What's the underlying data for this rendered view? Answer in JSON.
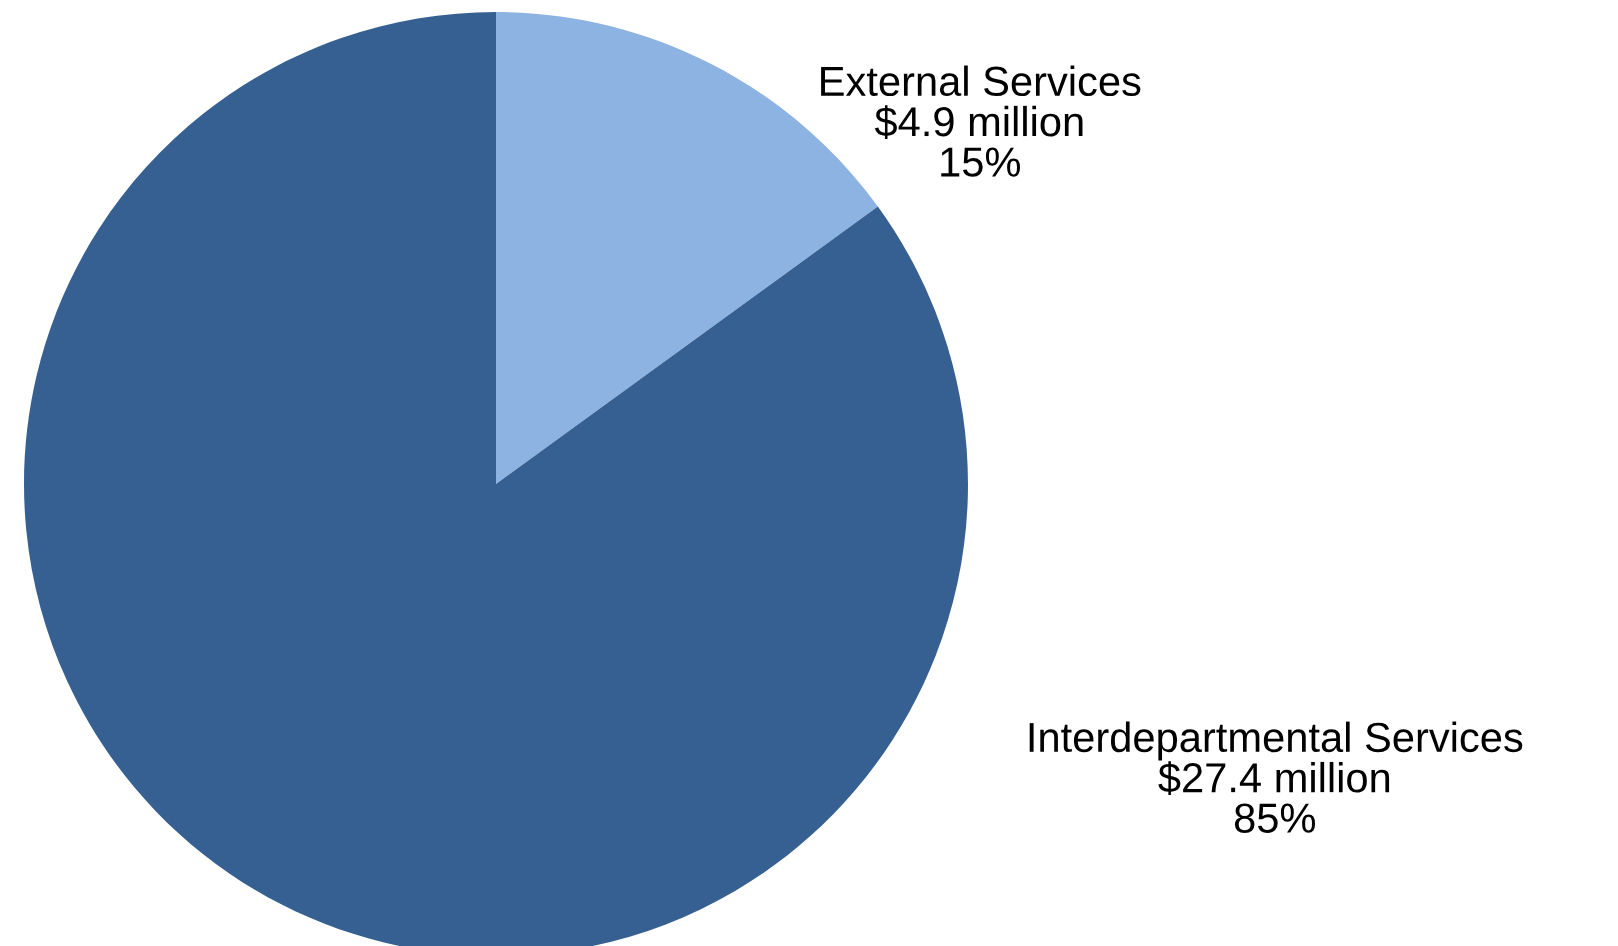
{
  "chart_data": {
    "type": "pie",
    "categories": [
      "External Services",
      "Interdepartmental Services"
    ],
    "values": [
      15,
      85
    ],
    "value_labels": [
      "15%",
      "85%"
    ],
    "annotations": [
      "$4.9 million",
      "$27.4 million"
    ],
    "colors": [
      "#8db3e2",
      "#366092"
    ]
  }
}
